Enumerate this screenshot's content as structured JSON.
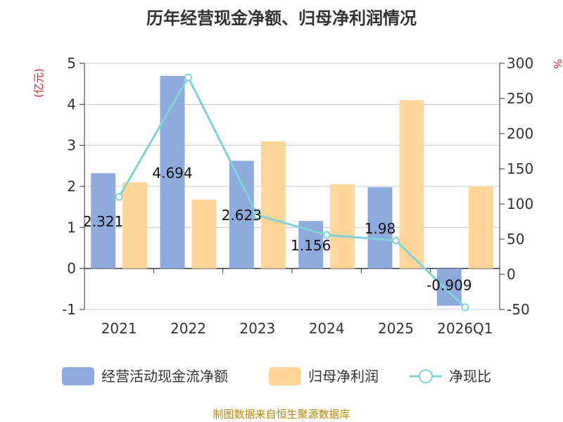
{
  "chart_data": {
    "type": "bar+line",
    "title": "历年经营现金净额、归母净利润情况",
    "categories": [
      "2021",
      "2022",
      "2023",
      "2024",
      "2025",
      "2026Q1"
    ],
    "left_axis": {
      "label": "(亿元)",
      "ylim": [
        -1,
        5
      ],
      "ticks": [
        -1,
        0,
        1,
        2,
        3,
        4,
        5
      ]
    },
    "right_axis": {
      "label": "%",
      "ylim": [
        -50,
        300
      ],
      "ticks": [
        -50,
        0,
        50,
        100,
        150,
        200,
        250,
        300
      ]
    },
    "series": [
      {
        "name": "经营活动现金流净额",
        "type": "bar",
        "axis": "left",
        "color": "#8faadc",
        "values": [
          2.321,
          4.694,
          2.623,
          1.156,
          1.98,
          -0.909
        ],
        "labels": [
          "2.321",
          "4.694",
          "2.623",
          "1.156",
          "1.98",
          "-0.909"
        ]
      },
      {
        "name": "归母净利润",
        "type": "bar",
        "axis": "left",
        "color": "#ffd699",
        "values": [
          2.1,
          1.68,
          3.1,
          2.05,
          4.1,
          2.0
        ]
      },
      {
        "name": "净现比",
        "type": "line",
        "axis": "right",
        "color": "#7fd3d8",
        "values": [
          110,
          280,
          84,
          56,
          48,
          -47
        ]
      }
    ],
    "grid": true,
    "legend_position": "bottom"
  },
  "source": "制图数据来自恒生聚源数据库"
}
